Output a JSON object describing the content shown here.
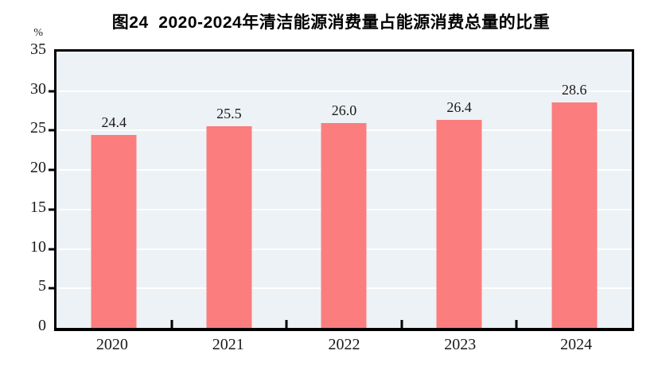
{
  "title": "图24  2020-2024年清洁能源消费量占能源消费总量的比重",
  "unit_label": "%",
  "chart_data": {
    "type": "bar",
    "title": "图24  2020-2024年清洁能源消费量占能源消费总量的比重",
    "categories": [
      "2020",
      "2021",
      "2022",
      "2023",
      "2024"
    ],
    "values": [
      24.4,
      25.5,
      26.0,
      26.4,
      28.6
    ],
    "value_labels": [
      "24.4",
      "25.5",
      "26.0",
      "26.4",
      "28.6"
    ],
    "xlabel": "",
    "ylabel": "%",
    "ylim": [
      0,
      35
    ],
    "yticks": [
      0,
      5,
      10,
      15,
      20,
      25,
      30,
      35
    ],
    "grid": true,
    "legend": "none",
    "colors": {
      "bar": "#FB7D7D",
      "plot_background": "#EDF2F6",
      "gridline": "#FFFFFF",
      "axis": "#000000",
      "text": "#1A1A1A"
    }
  }
}
